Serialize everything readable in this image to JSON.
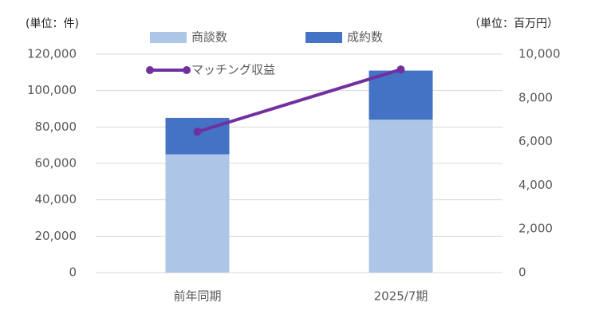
{
  "chart_data": {
    "type": "bar",
    "unit_left": "(単位：件)",
    "unit_right": "（単位：百万円）",
    "categories": [
      "前年同期",
      "2025/7期"
    ],
    "series": [
      {
        "name": "商談数",
        "color": "#adc5e6",
        "values": [
          65000,
          84000
        ]
      },
      {
        "name": "成約数",
        "color": "#4472c4",
        "values": [
          20000,
          27000
        ]
      },
      {
        "name": "マッチング収益",
        "type": "line",
        "axis": "y2",
        "color": "#7030a0",
        "values": [
          6450,
          9300
        ]
      }
    ],
    "ylim": [
      0,
      120000
    ],
    "yticks": [
      0,
      {
        "value": 20000,
        "label": "20,000"
      },
      {
        "value": 40000,
        "label": "40,000"
      },
      {
        "value": 60000,
        "label": "60,000"
      },
      {
        "value": 80000,
        "label": "80,000"
      },
      {
        "value": 100000,
        "label": "100,000"
      },
      {
        "value": 120000,
        "label": "120,000"
      }
    ],
    "y2lim": [
      0,
      10000
    ],
    "y2ticks": [
      0,
      {
        "value": 2000,
        "label": "2,000"
      },
      {
        "value": 4000,
        "label": "4,000"
      },
      {
        "value": 6000,
        "label": "6,000"
      },
      {
        "value": 8000,
        "label": "8,000"
      },
      {
        "value": 10000,
        "label": "10,000"
      }
    ],
    "grid": true,
    "stacked": true
  }
}
